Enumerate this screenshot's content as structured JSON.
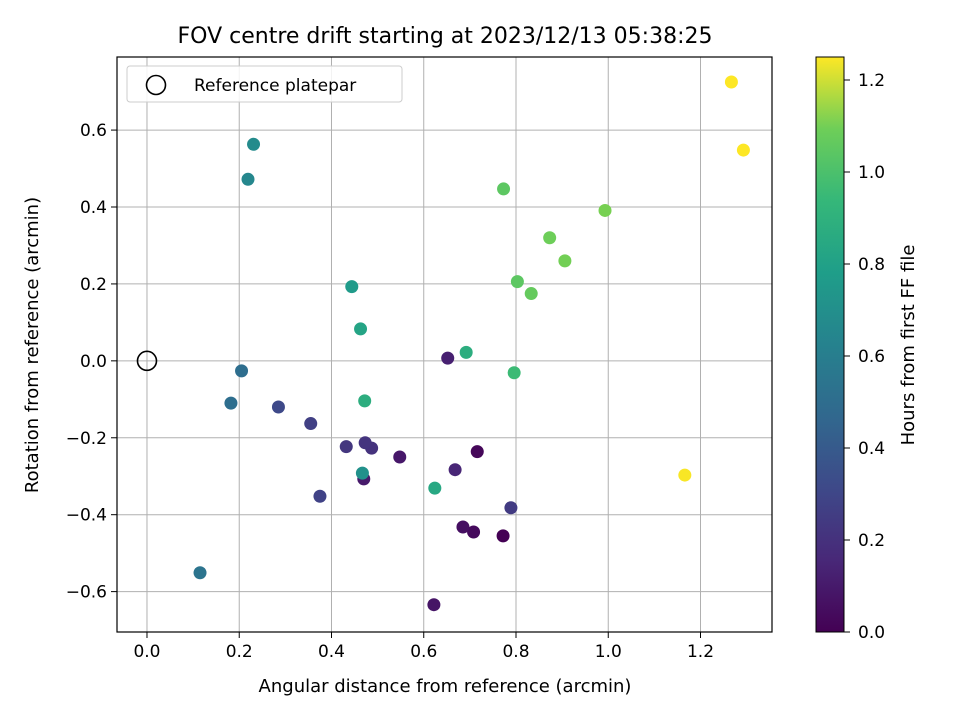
{
  "chart_data": {
    "type": "scatter",
    "title": "FOV centre drift starting at 2023/12/13 05:38:25",
    "xlabel": "Angular distance from reference (arcmin)",
    "ylabel": "Rotation from reference (arcmin)",
    "xlim": [
      -0.065,
      1.355
    ],
    "ylim": [
      -0.705,
      0.79
    ],
    "xticks": [
      0.0,
      0.2,
      0.4,
      0.6,
      0.8,
      1.0,
      1.2
    ],
    "xtick_labels": [
      "0.0",
      "0.2",
      "0.4",
      "0.6",
      "0.8",
      "1.0",
      "1.2"
    ],
    "yticks": [
      -0.6,
      -0.4,
      -0.2,
      0.0,
      0.2,
      0.4,
      0.6
    ],
    "ytick_labels": [
      "−0.6",
      "−0.4",
      "−0.2",
      "0.0",
      "0.2",
      "0.4",
      "0.6"
    ],
    "grid": true,
    "legend": {
      "position": "top-left",
      "entries": [
        "Reference platepar"
      ]
    },
    "reference_point": {
      "x": 0.0,
      "y": 0.0
    },
    "colorbar": {
      "label": "Hours from first FF file",
      "colormap": "viridis",
      "range": [
        0.0,
        1.25
      ],
      "ticks": [
        0.0,
        0.2,
        0.4,
        0.6,
        0.8,
        1.0,
        1.2
      ],
      "tick_labels": [
        "0.0",
        "0.2",
        "0.4",
        "0.6",
        "0.8",
        "1.0",
        "1.2"
      ]
    },
    "points": [
      {
        "x": 0.772,
        "y": -0.455,
        "hours": 0.0
      },
      {
        "x": 0.716,
        "y": -0.236,
        "hours": 0.02
      },
      {
        "x": 0.708,
        "y": -0.445,
        "hours": 0.03
      },
      {
        "x": 0.685,
        "y": -0.432,
        "hours": 0.05
      },
      {
        "x": 0.622,
        "y": -0.634,
        "hours": 0.07
      },
      {
        "x": 0.548,
        "y": -0.25,
        "hours": 0.08
      },
      {
        "x": 0.47,
        "y": -0.307,
        "hours": 0.09
      },
      {
        "x": 0.652,
        "y": 0.007,
        "hours": 0.11
      },
      {
        "x": 0.668,
        "y": -0.283,
        "hours": 0.13
      },
      {
        "x": 0.487,
        "y": -0.227,
        "hours": 0.18
      },
      {
        "x": 0.473,
        "y": -0.213,
        "hours": 0.19
      },
      {
        "x": 0.432,
        "y": -0.223,
        "hours": 0.2
      },
      {
        "x": 0.789,
        "y": -0.382,
        "hours": 0.22
      },
      {
        "x": 0.355,
        "y": -0.163,
        "hours": 0.24
      },
      {
        "x": 0.375,
        "y": -0.352,
        "hours": 0.25
      },
      {
        "x": 0.285,
        "y": -0.12,
        "hours": 0.28
      },
      {
        "x": 0.205,
        "y": -0.026,
        "hours": 0.45
      },
      {
        "x": 0.182,
        "y": -0.11,
        "hours": 0.45
      },
      {
        "x": 0.115,
        "y": -0.551,
        "hours": 0.48
      },
      {
        "x": 0.219,
        "y": 0.472,
        "hours": 0.58
      },
      {
        "x": 0.231,
        "y": 0.563,
        "hours": 0.6
      },
      {
        "x": 0.467,
        "y": -0.292,
        "hours": 0.63
      },
      {
        "x": 0.444,
        "y": 0.193,
        "hours": 0.68
      },
      {
        "x": 0.463,
        "y": 0.083,
        "hours": 0.73
      },
      {
        "x": 0.624,
        "y": -0.331,
        "hours": 0.75
      },
      {
        "x": 0.692,
        "y": 0.022,
        "hours": 0.78
      },
      {
        "x": 0.472,
        "y": -0.104,
        "hours": 0.78
      },
      {
        "x": 0.796,
        "y": -0.031,
        "hours": 0.85
      },
      {
        "x": 0.773,
        "y": 0.447,
        "hours": 0.93
      },
      {
        "x": 0.803,
        "y": 0.206,
        "hours": 0.93
      },
      {
        "x": 0.833,
        "y": 0.175,
        "hours": 0.95
      },
      {
        "x": 0.873,
        "y": 0.32,
        "hours": 0.97
      },
      {
        "x": 0.906,
        "y": 0.26,
        "hours": 0.98
      },
      {
        "x": 0.993,
        "y": 0.391,
        "hours": 0.99
      },
      {
        "x": 1.166,
        "y": -0.297,
        "hours": 1.24
      },
      {
        "x": 1.267,
        "y": 0.725,
        "hours": 1.25
      },
      {
        "x": 1.293,
        "y": 0.548,
        "hours": 1.25
      }
    ]
  }
}
